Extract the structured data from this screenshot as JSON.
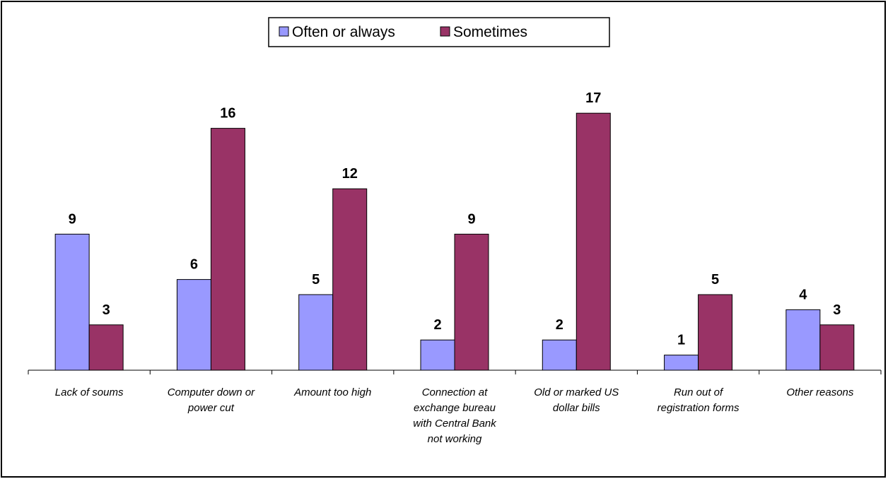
{
  "chart_data": {
    "type": "bar",
    "categories": [
      [
        "Lack of soums"
      ],
      [
        "Computer down or",
        "power cut"
      ],
      [
        "Amount too high"
      ],
      [
        "Connection at",
        "exchange bureau",
        "with Central Bank",
        "not working"
      ],
      [
        "Old or marked US",
        "dollar bills"
      ],
      [
        "Run out of",
        "registration forms"
      ],
      [
        "Other reasons"
      ]
    ],
    "series": [
      {
        "name": "Often or always",
        "color": "#9999ff",
        "values": [
          9,
          6,
          5,
          2,
          2,
          1,
          4
        ]
      },
      {
        "name": "Sometimes",
        "color": "#993366",
        "values": [
          3,
          16,
          12,
          9,
          17,
          5,
          3
        ]
      }
    ],
    "ylim": [
      0,
      18.5
    ],
    "grid": false,
    "legend_position": "top-center",
    "data_labels": true
  }
}
